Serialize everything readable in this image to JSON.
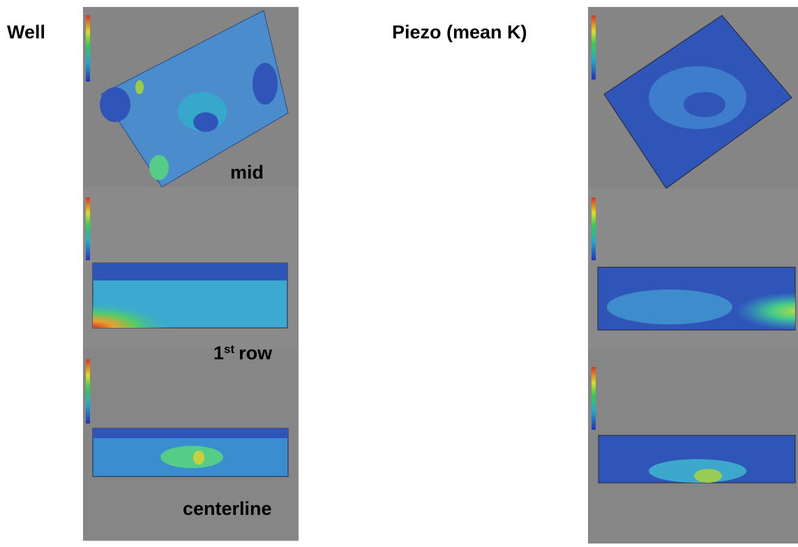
{
  "labels": {
    "well": "Well",
    "piezo": "Piezo (mean K)",
    "mid": "mid",
    "first_row": [
      "1",
      "st",
      "row"
    ],
    "centerline": "centerline"
  }
}
